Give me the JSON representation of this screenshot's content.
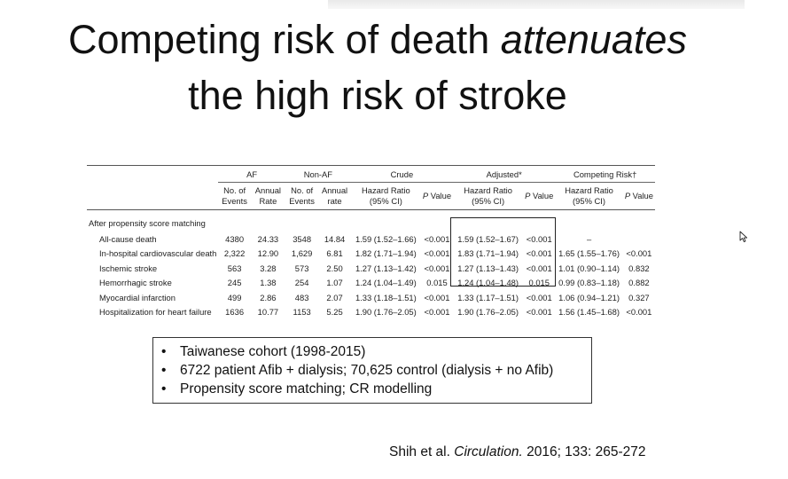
{
  "title": {
    "line1_prefix": "Competing risk of death ",
    "line1_emph": "attenuates",
    "line2": "the high risk of stroke"
  },
  "table": {
    "groups": {
      "af": "AF",
      "nonaf": "Non-AF",
      "crude": "Crude",
      "adjusted": "Adjusted*",
      "competing": "Competing Risk†"
    },
    "subheaders": {
      "events1": "No. of",
      "events2": "Events",
      "rate1": "Annual",
      "rate2": "Rate",
      "rate_lower2": "rate",
      "hr1": "Hazard Ratio",
      "hr2": "(95% CI)",
      "p_italic": "P",
      "p_rest": " Value"
    },
    "section": "After propensity score matching",
    "rows": [
      {
        "label": "All-cause death",
        "af_events": "4380",
        "af_rate": "24.33",
        "nonaf_events": "3548",
        "nonaf_rate": "14.84",
        "crude_hr": "1.59 (1.52–1.66)",
        "crude_p": "<0.001",
        "adj_hr": "1.59 (1.52–1.67)",
        "adj_p": "<0.001",
        "cr_hr": "–",
        "cr_p": ""
      },
      {
        "label": "In-hospital cardiovascular death",
        "af_events": "2,322",
        "af_rate": "12.90",
        "nonaf_events": "1,629",
        "nonaf_rate": "6.81",
        "crude_hr": "1.82 (1.71–1.94)",
        "crude_p": "<0.001",
        "adj_hr": "1.83 (1.71–1.94)",
        "adj_p": "<0.001",
        "cr_hr": "1.65 (1.55–1.76)",
        "cr_p": "<0.001"
      },
      {
        "label": "Ischemic stroke",
        "af_events": "563",
        "af_rate": "3.28",
        "nonaf_events": "573",
        "nonaf_rate": "2.50",
        "crude_hr": "1.27 (1.13–1.42)",
        "crude_p": "<0.001",
        "adj_hr": "1.27 (1.13–1.43)",
        "adj_p": "<0.001",
        "cr_hr": "1.01 (0.90–1.14)",
        "cr_p": "0.832"
      },
      {
        "label": "Hemorrhagic stroke",
        "af_events": "245",
        "af_rate": "1.38",
        "nonaf_events": "254",
        "nonaf_rate": "1.07",
        "crude_hr": "1.24 (1.04–1.49)",
        "crude_p": "0.015",
        "adj_hr": "1.24 (1.04–1.48)",
        "adj_p": "0.015",
        "cr_hr": "0.99 (0.83–1.18)",
        "cr_p": "0.882"
      },
      {
        "label": "Myocardial infarction",
        "af_events": "499",
        "af_rate": "2.86",
        "nonaf_events": "483",
        "nonaf_rate": "2.07",
        "crude_hr": "1.33 (1.18–1.51)",
        "crude_p": "<0.001",
        "adj_hr": "1.33 (1.17–1.51)",
        "adj_p": "<0.001",
        "cr_hr": "1.06 (0.94–1.21)",
        "cr_p": "0.327"
      },
      {
        "label": "Hospitalization for heart failure",
        "af_events": "1636",
        "af_rate": "10.77",
        "nonaf_events": "1153",
        "nonaf_rate": "5.25",
        "crude_hr": "1.90 (1.76–2.05)",
        "crude_p": "<0.001",
        "adj_hr": "1.90 (1.76–2.05)",
        "adj_p": "<0.001",
        "cr_hr": "1.56 (1.45–1.68)",
        "cr_p": "<0.001"
      }
    ]
  },
  "bullets": [
    "Taiwanese cohort (1998-2015)",
    "6722 patient Afib + dialysis; 70,625 control (dialysis + no Afib)",
    "Propensity score matching; CR modelling"
  ],
  "citation": {
    "authors": "Shih et al. ",
    "journal": "Circulation.",
    "rest": " 2016; 133: 265-272"
  },
  "cursor_icon": "mouse-cursor-icon"
}
